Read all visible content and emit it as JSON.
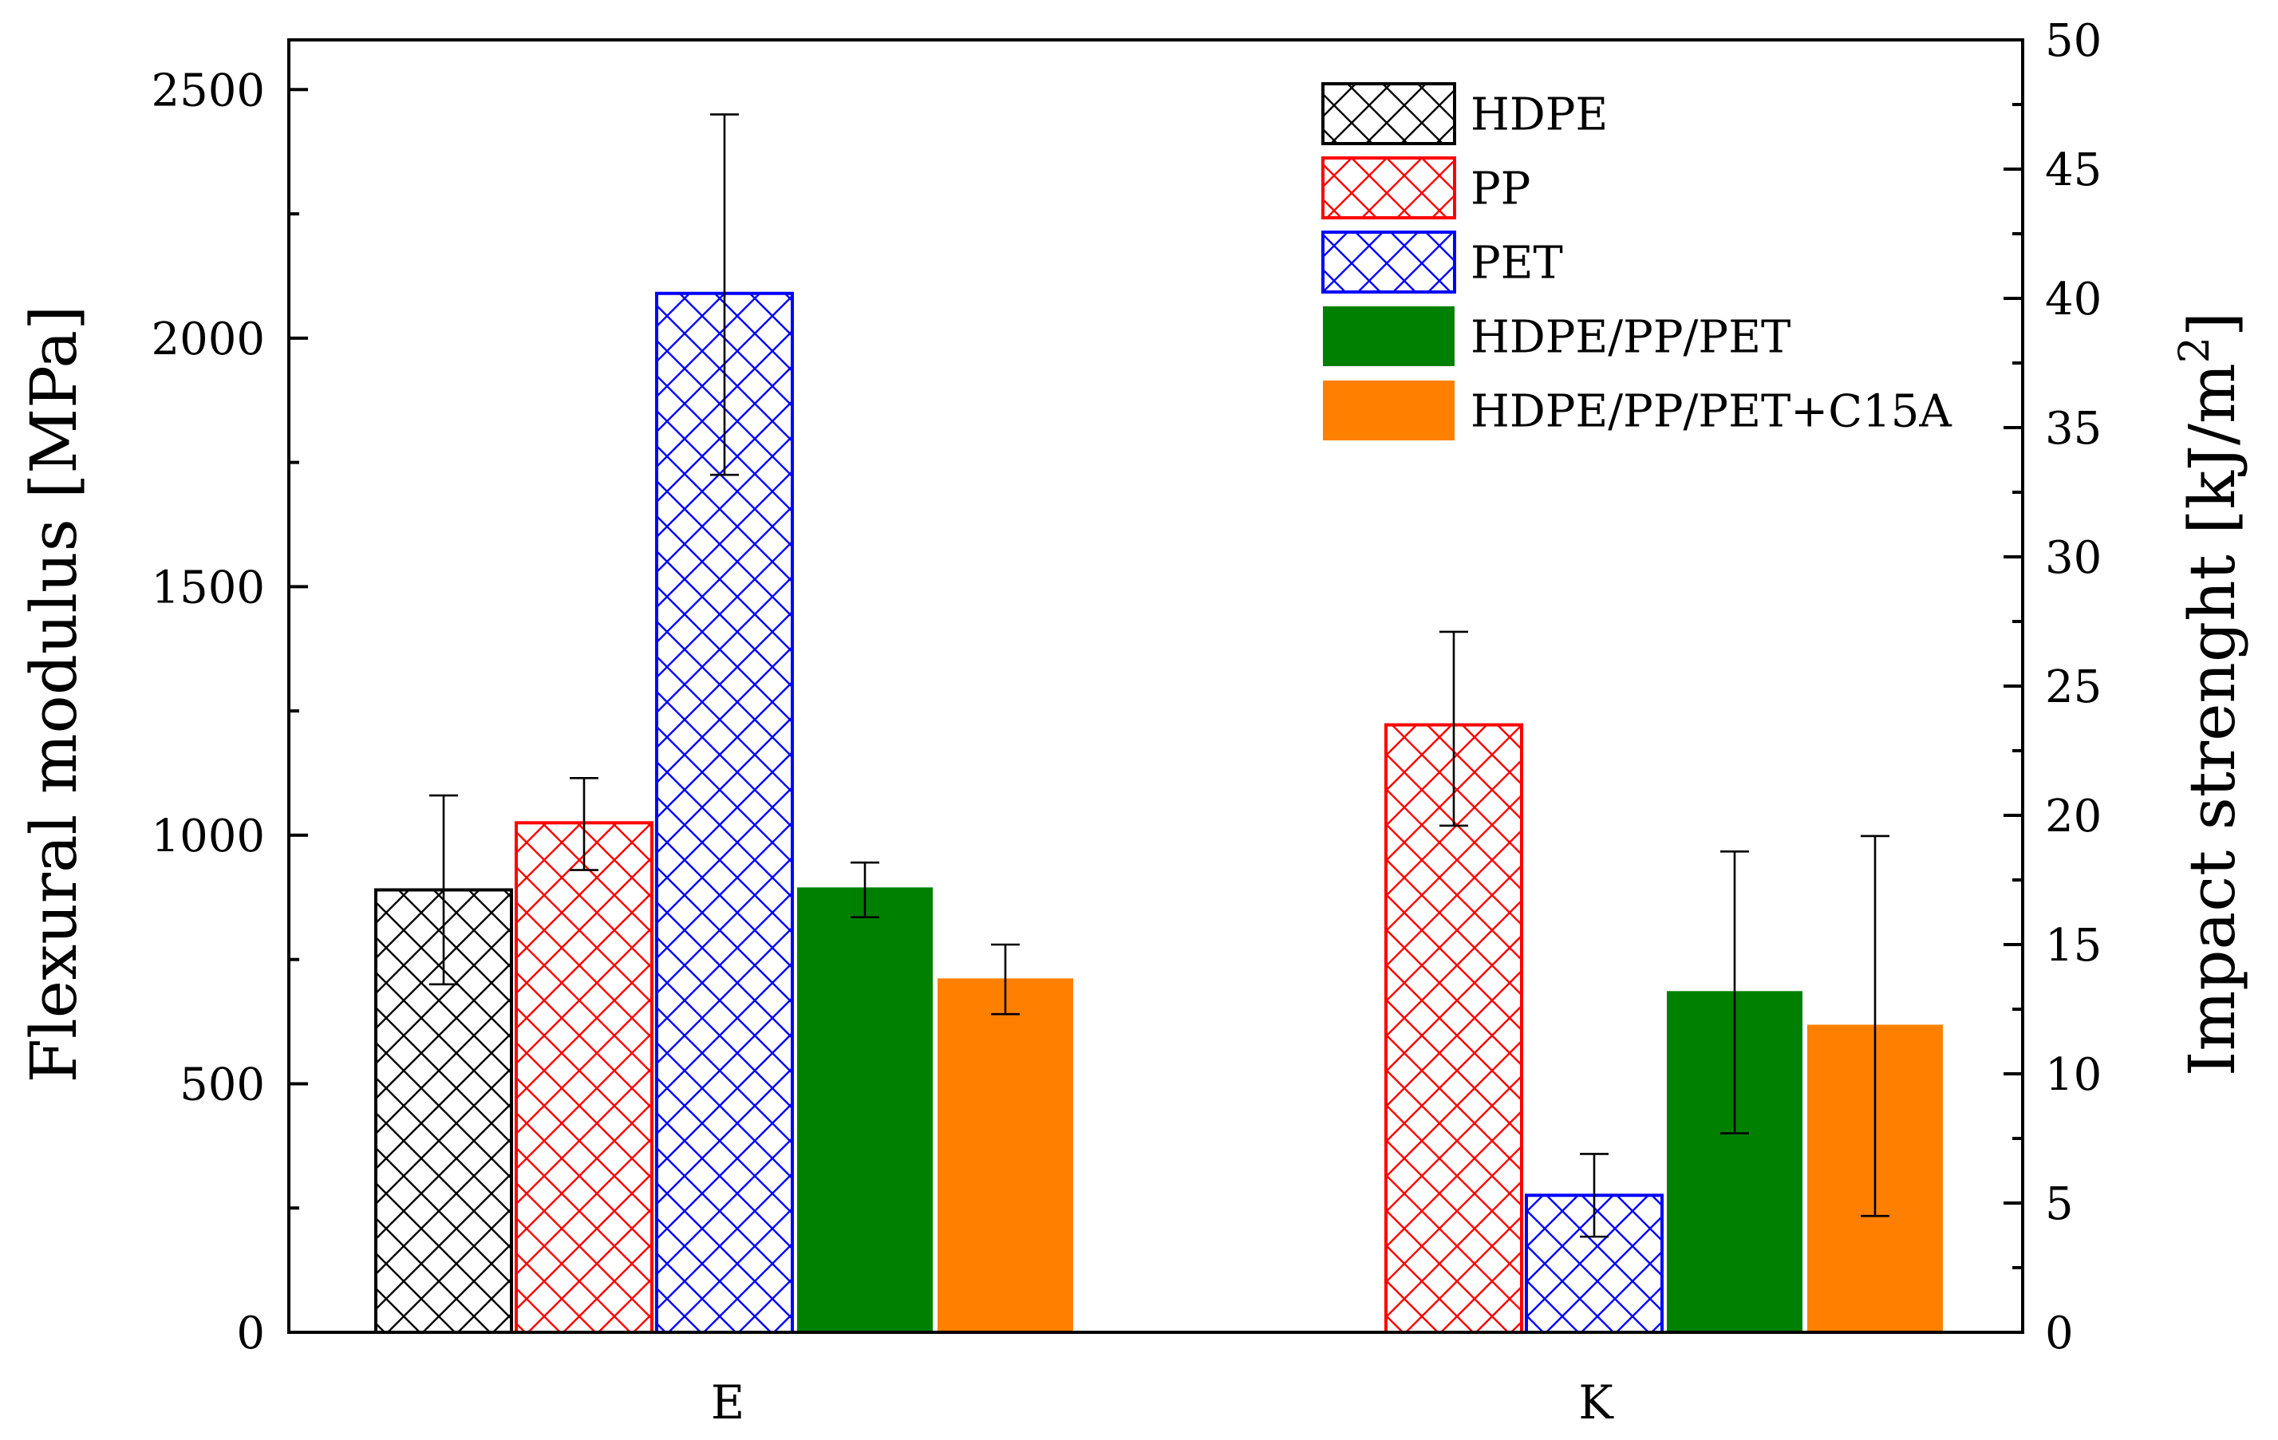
{
  "chart_data": {
    "type": "bar",
    "categories": [
      "E",
      "K"
    ],
    "left_axis": {
      "label": "Flexural modulus [MPa]",
      "ylim": [
        0,
        2600
      ],
      "ticks": [
        "0",
        "500",
        "1000",
        "1500",
        "2000",
        "2500"
      ],
      "tick_values": [
        0,
        500,
        1000,
        1500,
        2000,
        2500
      ]
    },
    "right_axis": {
      "label": "Impact strenght [kJ/m",
      "label_superscript": "2",
      "label_close": "]",
      "ylim": [
        0,
        50
      ],
      "ticks": [
        "0",
        "5",
        "10",
        "15",
        "20",
        "25",
        "30",
        "35",
        "40",
        "45",
        "50"
      ],
      "tick_values": [
        0,
        5,
        10,
        15,
        20,
        25,
        30,
        35,
        40,
        45,
        50
      ]
    },
    "series": [
      {
        "name": "HDPE",
        "color": "#000000",
        "fill": "hatch",
        "E": {
          "value": 890,
          "err_low": 700,
          "err_high": 1080
        },
        "K": null
      },
      {
        "name": "PP",
        "color": "#ff0000",
        "fill": "hatch",
        "E": {
          "value": 1025,
          "err_low": 930,
          "err_high": 1115
        },
        "K": {
          "value": 23.5,
          "err_low": 19.6,
          "err_high": 27.1
        }
      },
      {
        "name": "PET",
        "color": "#0000ff",
        "fill": "hatch",
        "E": {
          "value": 2090,
          "err_low": 1725,
          "err_high": 2450
        },
        "K": {
          "value": 5.3,
          "err_low": 3.7,
          "err_high": 6.9
        }
      },
      {
        "name": "HDPE/PP/PET",
        "color": "#008000",
        "fill": "solid",
        "E": {
          "value": 895,
          "err_low": 835,
          "err_high": 945
        },
        "K": {
          "value": 13.2,
          "err_low": 7.7,
          "err_high": 18.6
        }
      },
      {
        "name": "HDPE/PP/PET+C15A",
        "color": "#ff8000",
        "fill": "solid",
        "E": {
          "value": 712,
          "err_low": 640,
          "err_high": 780
        },
        "K": {
          "value": 11.9,
          "err_low": 4.5,
          "err_high": 19.2
        }
      }
    ],
    "legend_position": "top-right",
    "grid": false
  }
}
